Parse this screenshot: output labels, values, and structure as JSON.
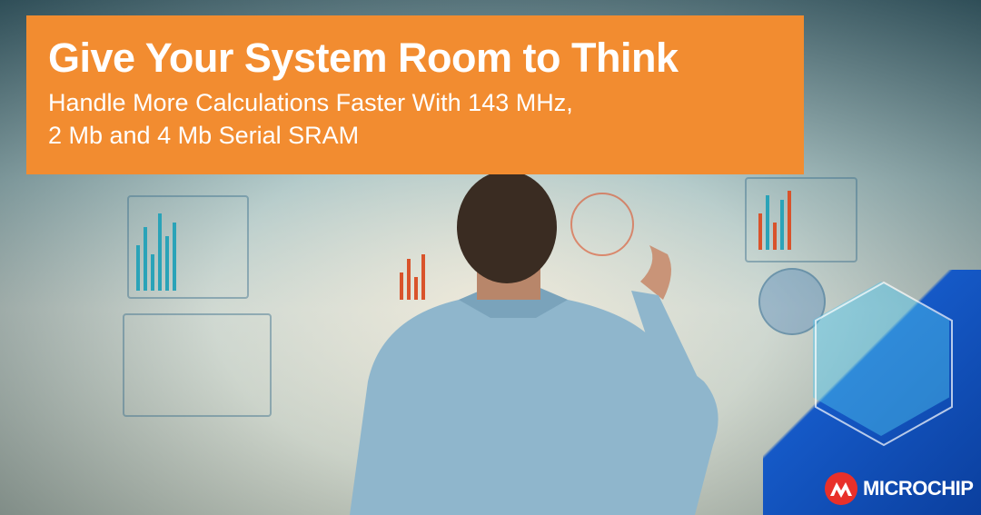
{
  "banner": {
    "title": "Give Your System Room to Think",
    "subtitle_line1": "Handle More Calculations Faster With 143 MHz,",
    "subtitle_line2": "2 Mb and 4 Mb Serial SRAM",
    "background_color": "#f28c30"
  },
  "brand": {
    "logo_text": "MICROCHIP",
    "logo_color": "#e8302a",
    "accent_color": "#1559c7"
  }
}
